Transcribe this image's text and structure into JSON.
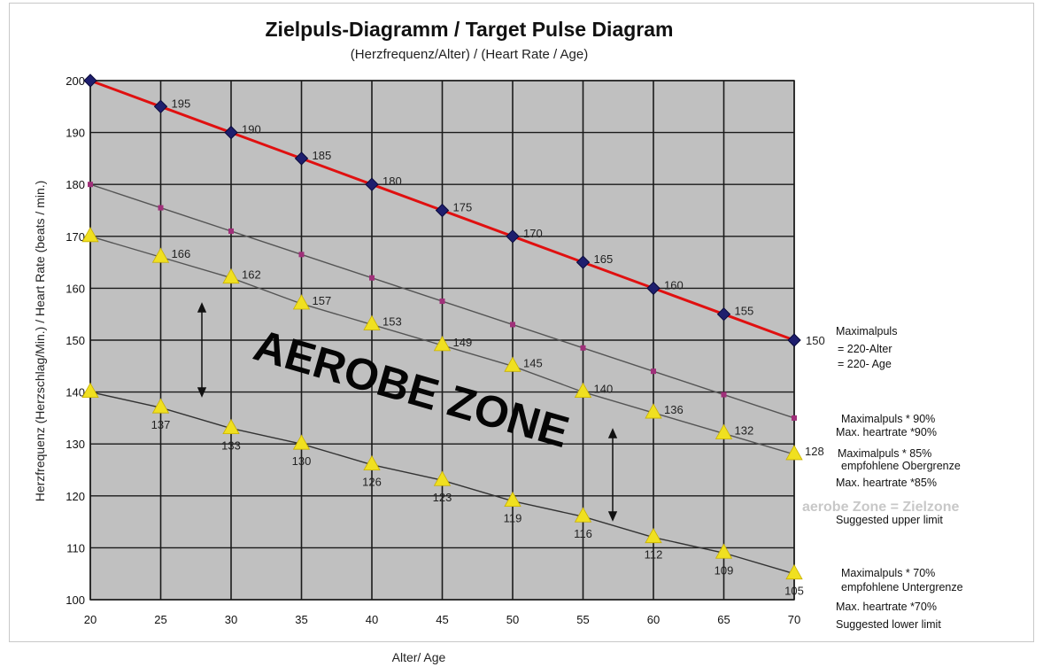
{
  "chart_data": {
    "type": "line",
    "title": "Zielpuls-Diagramm / Target Pulse Diagram",
    "subtitle": "(Herzfrequenz/Alter) / (Heart Rate / Age)",
    "xlabel": "Alter/ Age",
    "ylabel": "Herzfrequenz (Herzschlag/Min.) / Heart Rate (beats / min.)",
    "x": [
      20,
      25,
      30,
      35,
      40,
      45,
      50,
      55,
      60,
      65,
      70
    ],
    "xlim": [
      20,
      70
    ],
    "ylim": [
      100,
      200
    ],
    "x_ticks": [
      "20",
      "25",
      "30",
      "35",
      "40",
      "45",
      "50",
      "55",
      "60",
      "65",
      "70"
    ],
    "y_ticks": [
      "100",
      "110",
      "120",
      "130",
      "140",
      "150",
      "160",
      "170",
      "180",
      "190",
      "200"
    ],
    "grid": true,
    "background": "#c0c0c0",
    "series": [
      {
        "key": "max",
        "color": "#e01010",
        "marker_color": "#1e1e6e",
        "values": [
          200,
          195,
          190,
          185,
          180,
          175,
          170,
          165,
          160,
          155,
          150
        ],
        "labels": [
          "",
          "195",
          "190",
          "185",
          "180",
          "175",
          "170",
          "165",
          "160",
          "155",
          "150"
        ]
      },
      {
        "key": "p90",
        "color": "#555555",
        "marker_color": "#a0307a",
        "values": [
          180,
          175.5,
          171,
          166.5,
          162,
          157.5,
          153,
          148.5,
          144,
          139.5,
          135
        ],
        "labels": []
      },
      {
        "key": "p85",
        "color": "#555555",
        "marker_color": "#f0e020",
        "values": [
          170,
          166,
          162,
          157,
          153,
          149,
          145,
          140,
          136,
          132,
          128
        ],
        "labels": [
          "",
          "166",
          "162",
          "157",
          "153",
          "149",
          "145",
          "140",
          "136",
          "132",
          "128"
        ]
      },
      {
        "key": "p70",
        "color": "#333333",
        "marker_color": "#f0e020",
        "values": [
          140,
          137,
          133,
          130,
          126,
          123,
          119,
          116,
          112,
          109,
          105
        ],
        "labels": [
          "",
          "137",
          "133",
          "130",
          "126",
          "123",
          "119",
          "116",
          "112",
          "109",
          "105"
        ]
      }
    ],
    "annotations": {
      "zone_text": "AEROBE ZONE",
      "max_lines": [
        "Maximalpuls",
        "= 220-Alter",
        "= 220- Age"
      ],
      "p90_lines": [
        "Maximalpuls * 90%",
        "Max. heartrate *90%"
      ],
      "p85_lines": [
        "Maximalpuls * 85%",
        "empfohlene Obergrenze",
        "Max. heartrate *85%"
      ],
      "zone_gray": "aerobe Zone = Zielzone",
      "upper_limit": "Suggested upper limit",
      "p70_lines": [
        "Maximalpuls * 70%",
        "empfohlene Untergrenze",
        "Max. heartrate *70%",
        "Suggested lower limit"
      ]
    }
  }
}
